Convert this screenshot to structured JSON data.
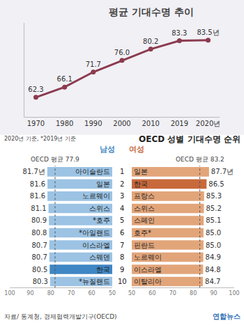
{
  "chart_data": [
    {
      "type": "line",
      "title": "평균 기대수명 추이",
      "categories": [
        "1970",
        "1980",
        "1990",
        "2000",
        "2010",
        "2019",
        "2020년"
      ],
      "values": [
        62.3,
        66.1,
        71.7,
        76.0,
        80.2,
        83.3,
        83.5
      ],
      "value_labels": [
        "62.3",
        "66.1",
        "71.7",
        "76.0",
        "80.2",
        "83.3",
        "83.5년"
      ],
      "data_labels": true,
      "color": "#8c3b4f",
      "marker": "circle",
      "ylim": [
        55,
        90
      ],
      "tick_labels": "x",
      "grid": false
    },
    {
      "type": "bar",
      "orientation": "horizontal",
      "title": "남성",
      "categories": [
        "아이슬란드",
        "일본",
        "노르웨이",
        "스위스",
        "*호주",
        "*아일랜드",
        "이스라엘",
        "스웨덴",
        "한국",
        "*뉴질랜드"
      ],
      "values": [
        81.7,
        81.6,
        81.6,
        81.1,
        80.9,
        80.8,
        80.7,
        80.7,
        80.5,
        80.3
      ],
      "value_labels": [
        "81.7년",
        "81.6",
        "81.6",
        "81.1",
        "80.9",
        "80.8",
        "80.7",
        "80.7",
        "80.5",
        "80.3"
      ],
      "data_labels": true,
      "colors": [
        "#9cc3e4",
        "#9cc3e4",
        "#9cc3e4",
        "#9cc3e4",
        "#9cc3e4",
        "#9cc3e4",
        "#9cc3e4",
        "#9cc3e4",
        "#3f86c4",
        "#9cc3e4"
      ],
      "xlim": [
        100,
        50
      ],
      "xticks": [
        100,
        90,
        80,
        70,
        60,
        50
      ],
      "reference": {
        "text": "OECD 평균 77.9",
        "value": 77.9
      }
    },
    {
      "type": "bar",
      "orientation": "horizontal",
      "title": "여성",
      "categories": [
        "일본",
        "한국",
        "프랑스",
        "스위스",
        "스페인",
        "호주*",
        "핀란드",
        "노르웨이",
        "이스라엘",
        "이탈리아"
      ],
      "values": [
        87.7,
        86.5,
        85.3,
        85.2,
        85.1,
        85.0,
        85.0,
        84.9,
        84.8,
        84.7
      ],
      "value_labels": [
        "87.7년",
        "86.5",
        "85.3",
        "85.2",
        "85.1",
        "85.0",
        "85.0",
        "84.9",
        "84.8",
        "84.7"
      ],
      "data_labels": true,
      "colors": [
        "#e2a57a",
        "#c8693b",
        "#e2a57a",
        "#e2a57a",
        "#e2a57a",
        "#e2a57a",
        "#e2a57a",
        "#e2a57a",
        "#e2a57a",
        "#e2a57a"
      ],
      "xlim": [
        50,
        100
      ],
      "xticks": [
        50,
        60,
        70,
        80,
        90,
        100
      ],
      "reference": {
        "text": "OECD 평균 83.2",
        "value": 83.2
      }
    }
  ],
  "section_title": "OECD 성별 기대수명 순위",
  "subtitle": "2020년 기준, *2019년 기준",
  "ranks": [
    1,
    2,
    3,
    4,
    5,
    6,
    7,
    8,
    9,
    10
  ],
  "source": "자료/ 통계청, 경제협력개발기구(OECD)",
  "credit": "연합뉴스"
}
